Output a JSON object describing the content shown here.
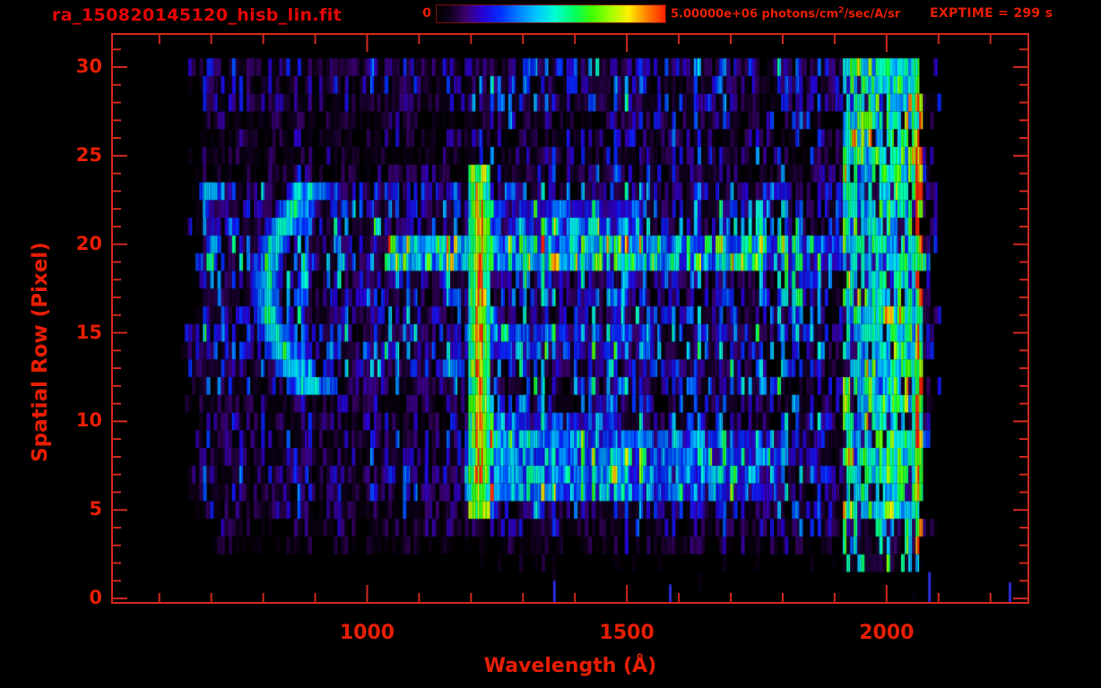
{
  "header": {
    "filename": "ra_150820145120_hisb_lin.fit",
    "exptime_label": "EXPTIME = 299 s"
  },
  "colorbar": {
    "min_label": "0",
    "max_label": "5.00000e+06",
    "units_prefix": " photons/cm",
    "units_sup": "2",
    "units_suffix": "/sec/A/sr",
    "border_color": "#7d1208"
  },
  "axes": {
    "x_label": "Wavelength (Å)",
    "y_label": "Spatial Row (Pixel)",
    "axis_color": "#d2281c",
    "text_color": "#e81e04",
    "x_major_ticks": [
      1000,
      1500,
      2000
    ],
    "x_minor_step": 100,
    "x_minor_range": [
      600,
      2200
    ],
    "xlim": [
      509,
      2273
    ],
    "y_major_ticks": [
      0,
      5,
      10,
      15,
      20,
      25,
      30
    ],
    "y_minor_step": 1,
    "y_minor_range": [
      0,
      31
    ],
    "ylim": [
      -0.25,
      31.87
    ]
  },
  "chart_data": {
    "type": "heatmap",
    "title": "ra_150820145120_hisb_lin.fit",
    "xlabel": "Wavelength (Å)",
    "ylabel": "Spatial Row (Pixel)",
    "xlim": [
      509,
      2273
    ],
    "ylim": [
      -0.25,
      31.87
    ],
    "value_scale": {
      "min": 0,
      "max": 5000000,
      "units": "photons/cm2/sec/A/sr"
    },
    "exposure_seconds": 299,
    "colormap_stops": [
      [
        0.0,
        "#000000"
      ],
      [
        0.06,
        "#10001c"
      ],
      [
        0.13,
        "#3c0070"
      ],
      [
        0.2,
        "#2800d8"
      ],
      [
        0.28,
        "#0030ff"
      ],
      [
        0.36,
        "#0080ff"
      ],
      [
        0.44,
        "#00c8ff"
      ],
      [
        0.52,
        "#00ffd0"
      ],
      [
        0.6,
        "#00ff64"
      ],
      [
        0.68,
        "#40ff00"
      ],
      [
        0.76,
        "#a0ff00"
      ],
      [
        0.84,
        "#ffee00"
      ],
      [
        0.92,
        "#ff8000"
      ],
      [
        1.0,
        "#ff2000"
      ]
    ],
    "features": {
      "background": {
        "row_profile": [
          0.015,
          0.02,
          0.03,
          0.06,
          0.1,
          0.14,
          0.17,
          0.18,
          0.17,
          0.16,
          0.15,
          0.14,
          0.17,
          0.18,
          0.19,
          0.2,
          0.18,
          0.18,
          0.19,
          0.24,
          0.22,
          0.2,
          0.19,
          0.18,
          0.12,
          0.1,
          0.1,
          0.11,
          0.14,
          0.15,
          0.15
        ],
        "lambda_start": 645,
        "lambda_end": 2062,
        "left_factor_rows_12_23": 0.95,
        "left_factor_other": 0.68,
        "right_gain": 1.25,
        "cap": 0.55
      },
      "emission_line": {
        "center_A": 1216,
        "sigma_A": 10,
        "halfwidth_A": 20,
        "rows": [
          5,
          24
        ],
        "base": 0.5,
        "peak_add": 0.4,
        "cap_value": 0.68
      },
      "streaks": [
        {
          "rows": [
            19,
            20
          ],
          "lambda": [
            1040,
            2070
          ],
          "strength": 0.3
        },
        {
          "rows": [
            6,
            9
          ],
          "lambda": [
            1190,
            1800
          ],
          "strength": 0.28
        },
        {
          "rows": [
            10,
            10
          ],
          "lambda": [
            1190,
            1500
          ],
          "strength": 0.18
        },
        {
          "rows": [
            14,
            15
          ],
          "lambda": [
            1190,
            1550
          ],
          "strength": 0.16
        },
        {
          "rows": [
            21,
            22
          ],
          "lambda": [
            1190,
            1500
          ],
          "strength": 0.15
        }
      ],
      "arc": {
        "rows": [
          12,
          23
        ],
        "row_center": 17.5,
        "row_halfspan": 5.5,
        "lambda_vertex": 805,
        "curve_A": 85,
        "halfwidth_A": 28,
        "halfwidth_curve_A": 20,
        "value": [
          0.42,
          0.62
        ]
      },
      "airglow_band": {
        "lambda": [
          1916,
          2062
        ],
        "value": [
          0.35,
          0.68
        ],
        "gap_prob": 0.2,
        "yellow_prob": 0.08
      },
      "red_edge": {
        "lambda": [
          2054,
          2068
        ],
        "value": 0.93,
        "prob": 0.5
      },
      "stragglers": {
        "lambda": [
          2068,
          2108
        ],
        "prob": 0.1,
        "value": 0.18
      },
      "bottom_specks": [
        {
          "lambda": 1358,
          "row": 1.0
        },
        {
          "lambda": 1581,
          "row": 0.8
        },
        {
          "lambda": 2080,
          "row": 1.5
        },
        {
          "lambda": 2235,
          "row": 0.9
        }
      ]
    }
  }
}
